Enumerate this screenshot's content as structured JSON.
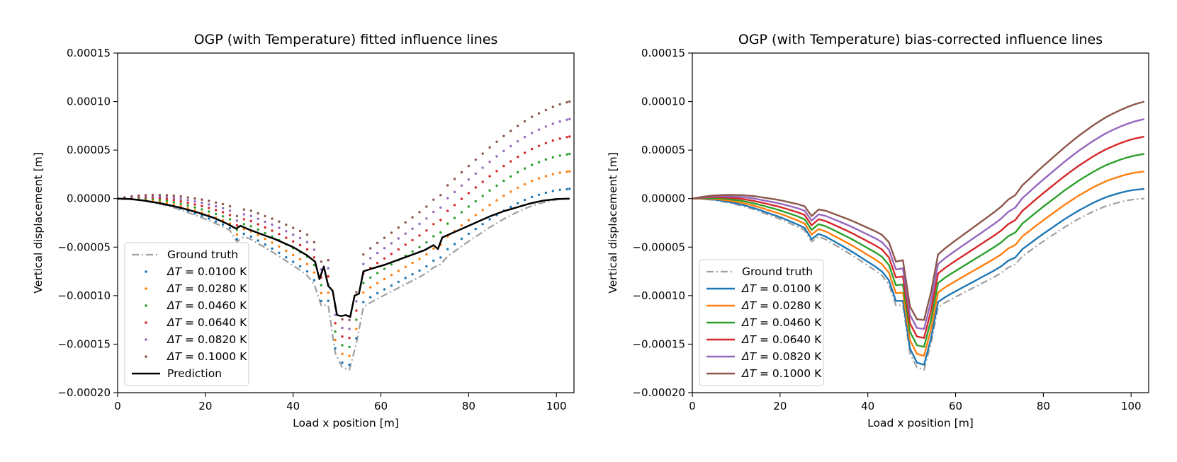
{
  "chart_data": [
    {
      "type": "scatter",
      "title": "OGP (with Temperature) fitted influence lines",
      "xlabel": "Load x position [m]",
      "ylabel": "Vertical displacement [m]",
      "xlim": [
        0,
        104
      ],
      "ylim": [
        -0.0002,
        0.00015
      ],
      "xticks": [
        0,
        20,
        40,
        60,
        80,
        100
      ],
      "xtick_labels": [
        "0",
        "20",
        "40",
        "60",
        "80",
        "100"
      ],
      "yticks": [
        -0.0002,
        -0.00015,
        -0.0001,
        -5e-05,
        0,
        5e-05,
        0.0001,
        0.00015
      ],
      "ytick_labels": [
        "−0.00020",
        "−0.00015",
        "−0.00010",
        "−0.00005",
        "0.00000",
        "0.00005",
        "0.00010",
        "0.00015"
      ],
      "legend_position": "lower-left",
      "series": [
        {
          "name": "Ground truth",
          "legend_label": "Ground truth",
          "style": "dashdot",
          "color": "#a0a0a0",
          "shift_per_m": 0
        },
        {
          "name": "ΔT = 0.0100 K",
          "legend_math": "ΔT",
          "legend_value": " = 0.0100 K",
          "style": "dotted",
          "color": "#1f77b4",
          "shift_per_m": 9.7e-08
        },
        {
          "name": "ΔT = 0.0280 K",
          "legend_math": "ΔT",
          "legend_value": " = 0.0280 K",
          "style": "dotted",
          "color": "#ff7f0e",
          "shift_per_m": 2.72e-07
        },
        {
          "name": "ΔT = 0.0460 K",
          "legend_math": "ΔT",
          "legend_value": " = 0.0460 K",
          "style": "dotted",
          "color": "#2ca02c",
          "shift_per_m": 4.47e-07
        },
        {
          "name": "ΔT = 0.0640 K",
          "legend_math": "ΔT",
          "legend_value": " = 0.0640 K",
          "style": "dotted",
          "color": "#d62728",
          "shift_per_m": 6.21e-07
        },
        {
          "name": "ΔT = 0.0820 K",
          "legend_math": "ΔT",
          "legend_value": " = 0.0820 K",
          "style": "dotted",
          "color": "#9467bd",
          "shift_per_m": 7.96e-07
        },
        {
          "name": "ΔT = 0.1000 K",
          "legend_math": "ΔT",
          "legend_value": " = 0.1000 K",
          "style": "dotted",
          "color": "#8c564b",
          "shift_per_m": 9.71e-07
        },
        {
          "name": "Prediction",
          "legend_label": "Prediction",
          "style": "solid",
          "color": "#000000",
          "shift_per_m": 0
        }
      ],
      "prediction_values": [
        [
          0,
          0
        ],
        [
          3,
          -5e-07
        ],
        [
          6,
          -2e-06
        ],
        [
          10,
          -5e-06
        ],
        [
          14,
          -9e-06
        ],
        [
          18,
          -1.4e-05
        ],
        [
          22,
          -2e-05
        ],
        [
          25,
          -2.6e-05
        ],
        [
          27,
          -3.1e-05
        ],
        [
          28,
          -2.8e-05
        ],
        [
          30,
          -3.2e-05
        ],
        [
          33,
          -3.7e-05
        ],
        [
          36,
          -4.2e-05
        ],
        [
          40,
          -5e-05
        ],
        [
          43,
          -5.8e-05
        ],
        [
          45,
          -6.5e-05
        ],
        [
          46,
          -8.3e-05
        ],
        [
          47,
          -7e-05
        ],
        [
          48,
          -9e-05
        ],
        [
          49,
          -9.5e-05
        ],
        [
          50,
          -0.00012
        ],
        [
          51,
          -0.000121
        ],
        [
          52,
          -0.00012
        ],
        [
          53,
          -0.000122
        ],
        [
          54,
          -0.0001
        ],
        [
          55,
          -9.8e-05
        ],
        [
          56,
          -7.5e-05
        ],
        [
          58,
          -7.2e-05
        ],
        [
          61,
          -6.8e-05
        ],
        [
          64,
          -6.3e-05
        ],
        [
          67,
          -5.8e-05
        ],
        [
          70,
          -5.3e-05
        ],
        [
          72,
          -4.8e-05
        ],
        [
          73,
          -5.2e-05
        ],
        [
          74,
          -4e-05
        ],
        [
          76,
          -3.6e-05
        ],
        [
          79,
          -3e-05
        ],
        [
          82,
          -2.4e-05
        ],
        [
          85,
          -1.8e-05
        ],
        [
          88,
          -1.3e-05
        ],
        [
          91,
          -9e-06
        ],
        [
          94,
          -5e-06
        ],
        [
          97,
          -2e-06
        ],
        [
          100,
          -5e-07
        ],
        [
          103,
          0
        ]
      ]
    },
    {
      "type": "line",
      "title": "OGP (with Temperature) bias-corrected influence lines",
      "xlabel": "Load x position [m]",
      "ylabel": "Vertical displacement [m]",
      "xlim": [
        0,
        104
      ],
      "ylim": [
        -0.0002,
        0.00015
      ],
      "xticks": [
        0,
        20,
        40,
        60,
        80,
        100
      ],
      "xtick_labels": [
        "0",
        "20",
        "40",
        "60",
        "80",
        "100"
      ],
      "yticks": [
        -0.0002,
        -0.00015,
        -0.0001,
        -5e-05,
        0,
        5e-05,
        0.0001,
        0.00015
      ],
      "ytick_labels": [
        "−0.00020",
        "−0.00015",
        "−0.00010",
        "−0.00005",
        "0.00000",
        "0.00005",
        "0.00010",
        "0.00015"
      ],
      "legend_position": "lower-left",
      "series": [
        {
          "name": "Ground truth",
          "legend_label": "Ground truth",
          "style": "dashdot",
          "color": "#a0a0a0",
          "shift_per_m": 0
        },
        {
          "name": "ΔT = 0.0100 K",
          "legend_math": "ΔT",
          "legend_value": " = 0.0100 K",
          "style": "solid",
          "color": "#1f77b4",
          "shift_per_m": 9.7e-08
        },
        {
          "name": "ΔT = 0.0280 K",
          "legend_math": "ΔT",
          "legend_value": " = 0.0280 K",
          "style": "solid",
          "color": "#ff7f0e",
          "shift_per_m": 2.72e-07
        },
        {
          "name": "ΔT = 0.0460 K",
          "legend_math": "ΔT",
          "legend_value": " = 0.0460 K",
          "style": "solid",
          "color": "#2ca02c",
          "shift_per_m": 4.47e-07
        },
        {
          "name": "ΔT = 0.0640 K",
          "legend_math": "ΔT",
          "legend_value": " = 0.0640 K",
          "style": "solid",
          "color": "#d62728",
          "shift_per_m": 6.21e-07
        },
        {
          "name": "ΔT = 0.0820 K",
          "legend_math": "ΔT",
          "legend_value": " = 0.0820 K",
          "style": "solid",
          "color": "#9467bd",
          "shift_per_m": 7.96e-07
        },
        {
          "name": "ΔT = 0.1000 K",
          "legend_math": "ΔT",
          "legend_value": " = 0.1000 K",
          "style": "solid",
          "color": "#8c564b",
          "shift_per_m": 9.71e-07
        }
      ]
    }
  ],
  "ground_truth_curve": [
    [
      0,
      0
    ],
    [
      2,
      -3e-07
    ],
    [
      5,
      -1.5e-06
    ],
    [
      8,
      -4e-06
    ],
    [
      11,
      -7e-06
    ],
    [
      14,
      -1.1e-05
    ],
    [
      17,
      -1.6e-05
    ],
    [
      20,
      -2.1e-05
    ],
    [
      23,
      -2.7e-05
    ],
    [
      25,
      -3.1e-05
    ],
    [
      26,
      -3.4e-05
    ],
    [
      27,
      -4.6e-05
    ],
    [
      28,
      -3.8e-05
    ],
    [
      30,
      -4.1e-05
    ],
    [
      33,
      -4.9e-05
    ],
    [
      36,
      -5.7e-05
    ],
    [
      39,
      -6.6e-05
    ],
    [
      42,
      -7.5e-05
    ],
    [
      44,
      -8.2e-05
    ],
    [
      45,
      -9e-05
    ],
    [
      46,
      -0.00012
    ],
    [
      47,
      -9.5e-05
    ],
    [
      48,
      -0.00011
    ],
    [
      49,
      -0.00014
    ],
    [
      50,
      -0.000172
    ],
    [
      51,
      -0.000174
    ],
    [
      52,
      -0.000174
    ],
    [
      53,
      -0.000177
    ],
    [
      54,
      -0.00015
    ],
    [
      55,
      -0.000148
    ],
    [
      56,
      -0.000112
    ],
    [
      58,
      -0.000106
    ],
    [
      61,
      -9.9e-05
    ],
    [
      64,
      -9.2e-05
    ],
    [
      67,
      -8.5e-05
    ],
    [
      70,
      -7.8e-05
    ],
    [
      72,
      -7.1e-05
    ],
    [
      73,
      -7.5e-05
    ],
    [
      74,
      -6.3e-05
    ],
    [
      76,
      -5.7e-05
    ],
    [
      79,
      -4.7e-05
    ],
    [
      82,
      -3.8e-05
    ],
    [
      85,
      -2.9e-05
    ],
    [
      88,
      -2.1e-05
    ],
    [
      91,
      -1.4e-05
    ],
    [
      94,
      -8e-06
    ],
    [
      97,
      -4e-06
    ],
    [
      100,
      -1e-06
    ],
    [
      103,
      0
    ]
  ]
}
